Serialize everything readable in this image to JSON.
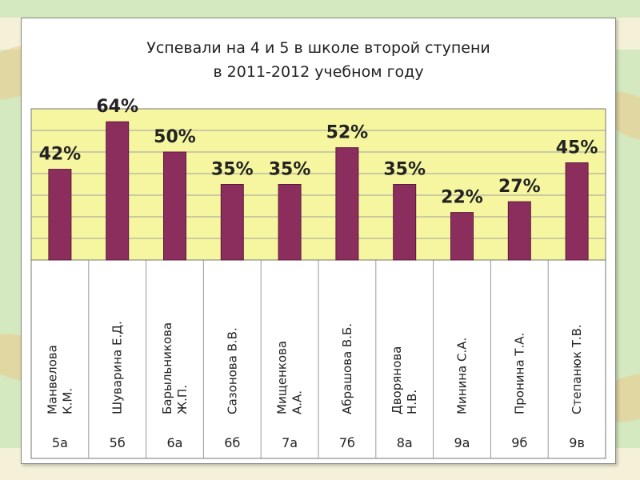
{
  "chart_data": {
    "type": "bar",
    "title": [
      "Успевали на 4 и 5 в школе второй ступени",
      "в 2011-2012 учебном году"
    ],
    "categories": [
      {
        "name": [
          "Манвелова",
          "К.М."
        ],
        "class": "5а"
      },
      {
        "name": [
          "Шуварина Е.Д."
        ],
        "class": "5б"
      },
      {
        "name": [
          "Барыльникова",
          "Ж.П."
        ],
        "class": "6а"
      },
      {
        "name": [
          "Сазонова В.В."
        ],
        "class": "6б"
      },
      {
        "name": [
          "Мищенкова",
          "А.А."
        ],
        "class": "7а"
      },
      {
        "name": [
          "Абрашова В.Б."
        ],
        "class": "7б"
      },
      {
        "name": [
          "Дворянова",
          "Н.В."
        ],
        "class": "8а"
      },
      {
        "name": [
          "Минина С.А."
        ],
        "class": "9а"
      },
      {
        "name": [
          "Пронина Т.А."
        ],
        "class": "9б"
      },
      {
        "name": [
          "Степанюк Т.В."
        ],
        "class": "9в"
      }
    ],
    "values": [
      42,
      64,
      50,
      35,
      35,
      52,
      35,
      22,
      27,
      45
    ],
    "value_labels": [
      "42%",
      "64%",
      "50%",
      "35%",
      "35%",
      "52%",
      "35%",
      "22%",
      "27%",
      "45%"
    ],
    "ylim": [
      0,
      70
    ],
    "grid": true,
    "colors": {
      "bar": "#8b2e5e",
      "plot_background": "#f6f6a0",
      "gridline": "#a0a0a0"
    }
  }
}
